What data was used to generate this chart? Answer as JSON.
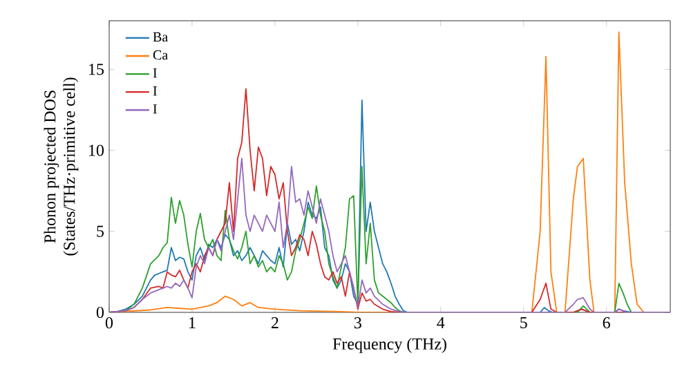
{
  "chart_data": {
    "type": "line",
    "xlabel": "Frequency (THz)",
    "ylabel": "Phonon projected DOS\n(States/THz·primitive cell)",
    "xlim": [
      0,
      6.77
    ],
    "ylim": [
      0,
      18
    ],
    "xticks": [
      0,
      1,
      2,
      3,
      4,
      5,
      6
    ],
    "yticks": [
      0,
      5,
      10,
      15
    ],
    "grid": false,
    "legend": "top left",
    "series": [
      {
        "name": "Ba",
        "color": "#1f77b4",
        "x": [
          0,
          0.1,
          0.2,
          0.3,
          0.4,
          0.5,
          0.55,
          0.6,
          0.65,
          0.7,
          0.75,
          0.8,
          0.85,
          0.9,
          0.95,
          1.0,
          1.05,
          1.1,
          1.15,
          1.2,
          1.25,
          1.3,
          1.35,
          1.4,
          1.45,
          1.5,
          1.55,
          1.6,
          1.65,
          1.7,
          1.75,
          1.8,
          1.85,
          1.9,
          1.95,
          2.0,
          2.05,
          2.1,
          2.15,
          2.2,
          2.25,
          2.3,
          2.35,
          2.4,
          2.45,
          2.5,
          2.55,
          2.6,
          2.65,
          2.7,
          2.75,
          2.8,
          2.85,
          2.9,
          2.95,
          3.0,
          3.05,
          3.1,
          3.15,
          3.2,
          3.25,
          3.3,
          3.35,
          3.4,
          3.45,
          3.5,
          3.55,
          3.6,
          5.2,
          5.25,
          5.3,
          5.35,
          5.6,
          5.7,
          5.8,
          6.1,
          6.15,
          6.2,
          6.3,
          6.75
        ],
        "values": [
          0,
          0.05,
          0.2,
          0.5,
          1.0,
          2.0,
          2.3,
          2.4,
          2.5,
          2.6,
          4.0,
          3.2,
          3.4,
          3.3,
          2.5,
          2.0,
          3.5,
          4.0,
          3.2,
          4.2,
          4.0,
          4.5,
          4.0,
          4.8,
          4.5,
          3.5,
          3.8,
          3.2,
          3.5,
          4.0,
          3.5,
          3.0,
          3.8,
          3.5,
          3.2,
          3.0,
          4.0,
          2.8,
          5.5,
          4.2,
          4.5,
          3.8,
          5.0,
          6.8,
          6.0,
          5.8,
          6.5,
          4.0,
          3.5,
          2.0,
          1.5,
          2.0,
          3.0,
          2.5,
          1.0,
          0.5,
          13.1,
          5.0,
          6.8,
          5.0,
          4.0,
          3.0,
          2.5,
          1.8,
          1.0,
          0.5,
          0.1,
          0,
          0,
          0.3,
          0.1,
          0,
          0,
          0.2,
          0,
          0,
          0.2,
          0.1,
          0,
          0
        ]
      },
      {
        "name": "Ca",
        "color": "#ff7f0e",
        "x": [
          0,
          0.5,
          0.7,
          1.0,
          1.1,
          1.2,
          1.3,
          1.4,
          1.5,
          1.6,
          1.7,
          1.8,
          2.0,
          2.3,
          2.8,
          3.0,
          5.1,
          5.2,
          5.27,
          5.33,
          5.4,
          5.5,
          5.6,
          5.65,
          5.72,
          5.8,
          5.85,
          6.1,
          6.15,
          6.22,
          6.3,
          6.37,
          6.45,
          6.75
        ],
        "values": [
          0,
          0.15,
          0.3,
          0.2,
          0.3,
          0.4,
          0.6,
          1.0,
          0.8,
          0.4,
          0.6,
          0.3,
          0.2,
          0.1,
          0.05,
          0,
          0,
          5.0,
          15.8,
          2.5,
          0,
          0,
          7.0,
          9.0,
          9.5,
          2.0,
          0,
          0,
          17.3,
          8.0,
          3.0,
          0.5,
          0,
          0
        ]
      },
      {
        "name": "I",
        "color": "#2ca02c",
        "x": [
          0,
          0.2,
          0.3,
          0.4,
          0.5,
          0.6,
          0.65,
          0.7,
          0.75,
          0.8,
          0.85,
          0.9,
          0.95,
          1.0,
          1.05,
          1.1,
          1.15,
          1.2,
          1.25,
          1.3,
          1.35,
          1.4,
          1.45,
          1.5,
          1.55,
          1.6,
          1.65,
          1.7,
          1.75,
          1.8,
          1.85,
          1.9,
          1.95,
          2.0,
          2.05,
          2.1,
          2.15,
          2.2,
          2.25,
          2.3,
          2.35,
          2.4,
          2.45,
          2.5,
          2.55,
          2.6,
          2.65,
          2.7,
          2.75,
          2.8,
          2.85,
          2.9,
          2.95,
          3.0,
          3.05,
          3.1,
          3.15,
          3.2,
          3.25,
          3.3,
          3.35,
          3.4,
          3.45,
          3.5,
          3.55,
          5.65,
          5.72,
          5.8,
          6.1,
          6.15,
          6.2,
          6.25,
          6.3,
          6.75
        ],
        "values": [
          0,
          0.1,
          0.5,
          1.5,
          3.0,
          3.5,
          4.0,
          4.3,
          7.1,
          5.5,
          6.9,
          6.0,
          4.2,
          2.8,
          5.0,
          6.1,
          4.5,
          4.0,
          4.5,
          3.5,
          3.2,
          6.3,
          4.5,
          3.8,
          3.3,
          4.0,
          5.0,
          3.0,
          3.5,
          2.8,
          3.2,
          2.5,
          2.8,
          2.5,
          3.5,
          3.0,
          2.0,
          2.5,
          3.8,
          4.5,
          5.5,
          6.5,
          5.8,
          7.8,
          6.0,
          5.0,
          3.0,
          2.2,
          1.5,
          2.8,
          4.0,
          7.0,
          7.2,
          0.5,
          9.0,
          3.0,
          5.5,
          2.0,
          1.2,
          1.0,
          0.8,
          0.6,
          0.3,
          0.1,
          0,
          0,
          0.4,
          0,
          0,
          1.8,
          1.2,
          0.5,
          0,
          0
        ]
      },
      {
        "name": "I",
        "color": "#d62728",
        "x": [
          0,
          0.2,
          0.3,
          0.4,
          0.5,
          0.6,
          0.65,
          0.7,
          0.75,
          0.8,
          0.85,
          0.9,
          0.95,
          1.0,
          1.05,
          1.1,
          1.15,
          1.2,
          1.25,
          1.3,
          1.35,
          1.4,
          1.45,
          1.5,
          1.55,
          1.6,
          1.65,
          1.7,
          1.75,
          1.8,
          1.85,
          1.9,
          1.95,
          2.0,
          2.05,
          2.1,
          2.15,
          2.2,
          2.25,
          2.3,
          2.35,
          2.4,
          2.45,
          2.5,
          2.55,
          2.6,
          2.65,
          2.7,
          2.75,
          2.8,
          2.85,
          2.9,
          2.95,
          3.0,
          3.05,
          3.1,
          3.15,
          3.2,
          3.3,
          3.4,
          3.5,
          5.1,
          5.2,
          5.27,
          5.33,
          5.4,
          5.6,
          5.7,
          5.8,
          6.75
        ],
        "values": [
          0,
          0.1,
          0.3,
          0.8,
          1.5,
          1.6,
          1.5,
          2.5,
          2.3,
          2.2,
          2.6,
          2.0,
          1.5,
          2.5,
          3.0,
          2.5,
          3.5,
          4.0,
          3.5,
          4.5,
          5.0,
          5.5,
          8.0,
          5.0,
          9.5,
          10.5,
          13.8,
          10.0,
          7.5,
          10.2,
          9.5,
          7.2,
          9.0,
          8.5,
          7.0,
          8.0,
          5.0,
          3.5,
          4.0,
          4.8,
          4.5,
          3.5,
          5.0,
          4.2,
          3.0,
          2.2,
          2.0,
          2.5,
          1.8,
          2.2,
          1.0,
          2.5,
          1.5,
          0.2,
          1.2,
          0.7,
          0.8,
          0.5,
          0.2,
          0.05,
          0,
          0,
          0.8,
          1.8,
          0.2,
          0,
          0,
          0.2,
          0,
          0
        ]
      },
      {
        "name": "I",
        "color": "#9467bd",
        "x": [
          0,
          0.2,
          0.3,
          0.4,
          0.5,
          0.6,
          0.65,
          0.7,
          0.75,
          0.8,
          0.85,
          0.9,
          0.95,
          1.0,
          1.05,
          1.1,
          1.15,
          1.2,
          1.25,
          1.3,
          1.35,
          1.4,
          1.45,
          1.5,
          1.55,
          1.6,
          1.65,
          1.7,
          1.75,
          1.8,
          1.85,
          1.9,
          1.95,
          2.0,
          2.05,
          2.1,
          2.15,
          2.2,
          2.25,
          2.3,
          2.35,
          2.4,
          2.45,
          2.5,
          2.55,
          2.6,
          2.65,
          2.7,
          2.75,
          2.8,
          2.85,
          2.9,
          2.95,
          3.0,
          3.05,
          3.1,
          3.15,
          3.2,
          3.3,
          3.4,
          3.5,
          3.6,
          5.5,
          5.6,
          5.65,
          5.72,
          5.8,
          5.85,
          6.1,
          6.15,
          6.25,
          6.75
        ],
        "values": [
          0,
          0.1,
          0.3,
          0.8,
          1.2,
          1.4,
          1.5,
          1.6,
          1.5,
          1.8,
          1.6,
          2.0,
          1.5,
          0.9,
          2.8,
          3.5,
          3.0,
          4.0,
          3.5,
          4.5,
          3.8,
          5.0,
          6.0,
          4.5,
          7.0,
          9.5,
          6.0,
          5.0,
          6.0,
          5.5,
          5.0,
          6.0,
          5.5,
          5.0,
          6.8,
          4.0,
          5.5,
          9.0,
          6.8,
          7.0,
          6.0,
          7.5,
          6.5,
          5.5,
          7.0,
          6.0,
          5.0,
          3.5,
          2.5,
          3.0,
          3.5,
          2.5,
          1.5,
          0.3,
          2.0,
          1.2,
          1.5,
          1.0,
          0.5,
          0.2,
          0.05,
          0,
          0,
          0.5,
          0.8,
          0.9,
          0.2,
          0,
          0,
          0.2,
          0,
          0
        ]
      }
    ]
  }
}
